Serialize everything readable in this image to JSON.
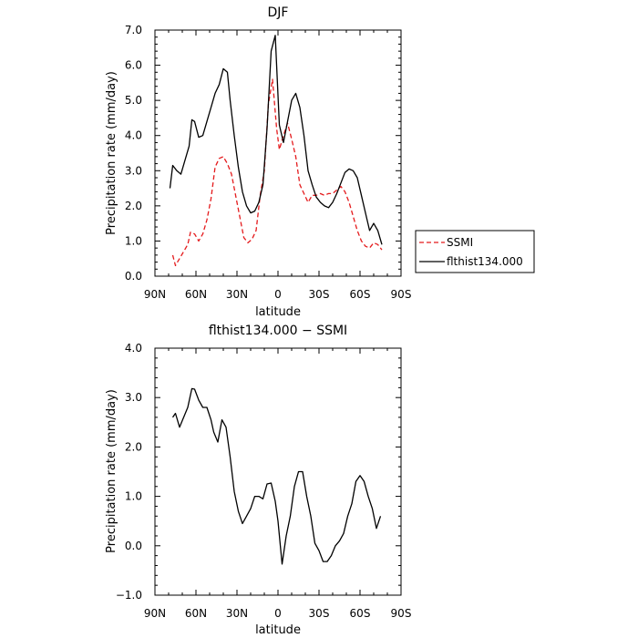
{
  "chart_data": [
    {
      "type": "line",
      "title": "DJF",
      "xlabel": "latitude",
      "ylabel": "Precipitation rate (mm/day)",
      "xlim": [
        90,
        -90
      ],
      "ylim": [
        0,
        7
      ],
      "x_ticks": [
        90,
        60,
        30,
        0,
        -30,
        -60,
        -90
      ],
      "x_tick_labels": [
        "90N",
        "60N",
        "30N",
        "0",
        "30S",
        "60S",
        "90S"
      ],
      "y_ticks": [
        0,
        1,
        2,
        3,
        4,
        5,
        6,
        7
      ],
      "y_tick_labels": [
        "0.0",
        "1.0",
        "2.0",
        "3.0",
        "4.0",
        "5.0",
        "6.0",
        "7.0"
      ],
      "grid": false,
      "legend_position": "right",
      "series": [
        {
          "name": "SSMI",
          "color": "#e41a1c",
          "dash": "dashed",
          "x": [
            77,
            75,
            72,
            69,
            66,
            64,
            61,
            58,
            55,
            52,
            49,
            46,
            43,
            40,
            37,
            34,
            31,
            28,
            25,
            22,
            19,
            16,
            13,
            10,
            7,
            4,
            1,
            -1,
            -4,
            -7,
            -10,
            -13,
            -16,
            -19,
            -22,
            -25,
            -28,
            -31,
            -34,
            -37,
            -40,
            -43,
            -46,
            -49,
            -52,
            -55,
            -58,
            -61,
            -64,
            -67,
            -70,
            -73,
            -76
          ],
          "y": [
            0.6,
            0.3,
            0.5,
            0.7,
            0.9,
            1.25,
            1.2,
            1.0,
            1.2,
            1.6,
            2.2,
            3.1,
            3.35,
            3.4,
            3.2,
            2.9,
            2.3,
            1.7,
            1.1,
            0.95,
            1.05,
            1.3,
            2.3,
            3.0,
            4.9,
            5.6,
            4.2,
            3.6,
            4.0,
            4.35,
            3.9,
            3.4,
            2.6,
            2.35,
            2.1,
            2.3,
            2.3,
            2.35,
            2.3,
            2.35,
            2.35,
            2.45,
            2.55,
            2.4,
            2.1,
            1.7,
            1.3,
            1.0,
            0.85,
            0.8,
            0.95,
            0.9,
            0.75
          ]
        },
        {
          "name": "flthist134.000",
          "color": "#000000",
          "dash": "solid",
          "x": [
            79,
            77,
            74,
            71,
            68,
            65,
            63,
            61,
            58,
            55,
            52,
            49,
            46,
            43,
            40,
            37,
            35,
            32,
            29,
            26,
            23,
            20,
            17,
            14,
            11,
            8,
            5,
            2,
            -1,
            -4,
            -7,
            -10,
            -13,
            -16,
            -19,
            -22,
            -25,
            -28,
            -31,
            -34,
            -37,
            -40,
            -43,
            -46,
            -49,
            -52,
            -55,
            -58,
            -61,
            -64,
            -67,
            -70,
            -73,
            -76
          ],
          "y": [
            2.5,
            3.15,
            3.0,
            2.9,
            3.3,
            3.7,
            4.45,
            4.4,
            3.95,
            4.0,
            4.4,
            4.8,
            5.2,
            5.45,
            5.9,
            5.8,
            5.0,
            4.0,
            3.1,
            2.4,
            2.0,
            1.8,
            1.85,
            2.1,
            2.6,
            4.2,
            6.4,
            6.85,
            4.3,
            3.8,
            4.4,
            5.0,
            5.2,
            4.8,
            4.0,
            3.0,
            2.6,
            2.25,
            2.1,
            2.0,
            1.95,
            2.1,
            2.35,
            2.65,
            2.95,
            3.05,
            3.0,
            2.8,
            2.3,
            1.8,
            1.3,
            1.5,
            1.3,
            0.9
          ]
        }
      ]
    },
    {
      "type": "line",
      "title": "flthist134.000 − SSMI",
      "xlabel": "latitude",
      "ylabel": "Precipitation rate (mm/day)",
      "xlim": [
        90,
        -90
      ],
      "ylim": [
        -1,
        4
      ],
      "x_ticks": [
        90,
        60,
        30,
        0,
        -30,
        -60,
        -90
      ],
      "x_tick_labels": [
        "90N",
        "60N",
        "30N",
        "0",
        "30S",
        "60S",
        "90S"
      ],
      "y_ticks": [
        -1,
        0,
        1,
        2,
        3,
        4
      ],
      "y_tick_labels": [
        "−1.0",
        "0.0",
        "1.0",
        "2.0",
        "3.0",
        "4.0"
      ],
      "grid": false,
      "series": [
        {
          "color": "#000000",
          "dash": "solid",
          "x": [
            77,
            75,
            72,
            69,
            66,
            63,
            61,
            58,
            55,
            52,
            49,
            47,
            44,
            41,
            38,
            35,
            32,
            29,
            26,
            23,
            20,
            17,
            14,
            11,
            8,
            5,
            2,
            0,
            -3,
            -6,
            -9,
            -12,
            -15,
            -18,
            -21,
            -24,
            -27,
            -30,
            -33,
            -36,
            -39,
            -42,
            -45,
            -48,
            -51,
            -54,
            -57,
            -60,
            -63,
            -66,
            -69,
            -72,
            -75
          ],
          "y": [
            2.6,
            2.68,
            2.4,
            2.6,
            2.8,
            3.18,
            3.17,
            2.95,
            2.8,
            2.8,
            2.55,
            2.3,
            2.1,
            2.55,
            2.4,
            1.8,
            1.1,
            0.7,
            0.45,
            0.6,
            0.75,
            1.0,
            1.0,
            0.95,
            1.25,
            1.27,
            0.9,
            0.5,
            -0.37,
            0.2,
            0.6,
            1.2,
            1.5,
            1.5,
            1.0,
            0.6,
            0.05,
            -0.1,
            -0.32,
            -0.32,
            -0.2,
            0.0,
            0.1,
            0.25,
            0.6,
            0.85,
            1.3,
            1.42,
            1.3,
            1.0,
            0.75,
            0.35,
            0.6
          ]
        }
      ]
    }
  ]
}
